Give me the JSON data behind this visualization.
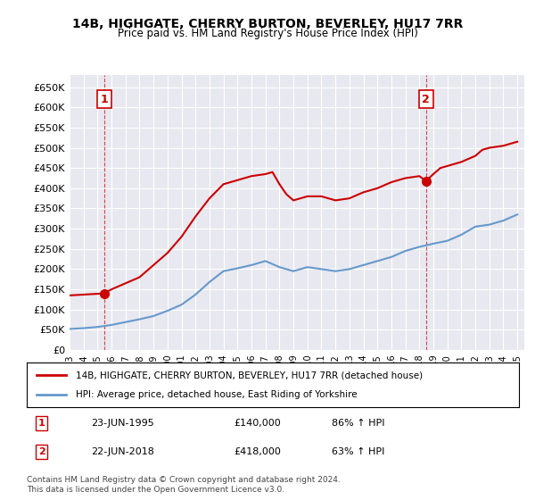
{
  "title": "14B, HIGHGATE, CHERRY BURTON, BEVERLEY, HU17 7RR",
  "subtitle": "Price paid vs. HM Land Registry's House Price Index (HPI)",
  "ylabel_ticks": [
    "£0",
    "£50K",
    "£100K",
    "£150K",
    "£200K",
    "£250K",
    "£300K",
    "£350K",
    "£400K",
    "£450K",
    "£500K",
    "£550K",
    "£600K",
    "£650K"
  ],
  "ylim": [
    0,
    650000
  ],
  "xlim_start": 1993.0,
  "xlim_end": 2025.5,
  "legend_line1": "14B, HIGHGATE, CHERRY BURTON, BEVERLEY, HU17 7RR (detached house)",
  "legend_line2": "HPI: Average price, detached house, East Riding of Yorkshire",
  "transaction1_label": "1",
  "transaction1_date": "23-JUN-1995",
  "transaction1_price": "£140,000",
  "transaction1_hpi": "86% ↑ HPI",
  "transaction1_x": 1995.47,
  "transaction1_y": 140000,
  "transaction2_label": "2",
  "transaction2_date": "22-JUN-2018",
  "transaction2_price": "£418,000",
  "transaction2_hpi": "63% ↑ HPI",
  "transaction2_x": 2018.47,
  "transaction2_y": 418000,
  "footer": "Contains HM Land Registry data © Crown copyright and database right 2024.\nThis data is licensed under the Open Government Licence v3.0.",
  "red_color": "#cc0000",
  "blue_color": "#6699cc",
  "bg_color": "#e8e8f0",
  "grid_color": "#ffffff",
  "hpi_x": [
    1993,
    1994,
    1995,
    1996,
    1997,
    1998,
    1999,
    2000,
    2001,
    2002,
    2003,
    2004,
    2005,
    2006,
    2007,
    2008,
    2009,
    2010,
    2011,
    2012,
    2013,
    2014,
    2015,
    2016,
    2017,
    2018,
    2019,
    2020,
    2021,
    2022,
    2023,
    2024,
    2025
  ],
  "hpi_y": [
    52000,
    54000,
    57000,
    62000,
    69000,
    76000,
    84000,
    97000,
    112000,
    137000,
    168000,
    195000,
    202000,
    210000,
    220000,
    205000,
    195000,
    205000,
    200000,
    195000,
    200000,
    210000,
    220000,
    230000,
    245000,
    255000,
    263000,
    270000,
    285000,
    305000,
    310000,
    320000,
    335000
  ],
  "red_x": [
    1993,
    1994,
    1995.0,
    1995.47,
    1996,
    1997,
    1998,
    1999,
    2000,
    2001,
    2002,
    2003,
    2004,
    2005,
    2006,
    2007,
    2007.5,
    2008,
    2008.5,
    2009,
    2010,
    2011,
    2012,
    2013,
    2014,
    2015,
    2016,
    2017,
    2018.0,
    2018.47,
    2019,
    2019.5,
    2020,
    2021,
    2022,
    2022.5,
    2023,
    2024,
    2024.5,
    2025
  ],
  "red_y": [
    135000,
    137000,
    139000,
    140000,
    150000,
    165000,
    180000,
    210000,
    240000,
    280000,
    330000,
    375000,
    410000,
    420000,
    430000,
    435000,
    440000,
    410000,
    385000,
    370000,
    380000,
    380000,
    370000,
    375000,
    390000,
    400000,
    415000,
    425000,
    430000,
    418000,
    435000,
    450000,
    455000,
    465000,
    480000,
    495000,
    500000,
    505000,
    510000,
    515000
  ]
}
